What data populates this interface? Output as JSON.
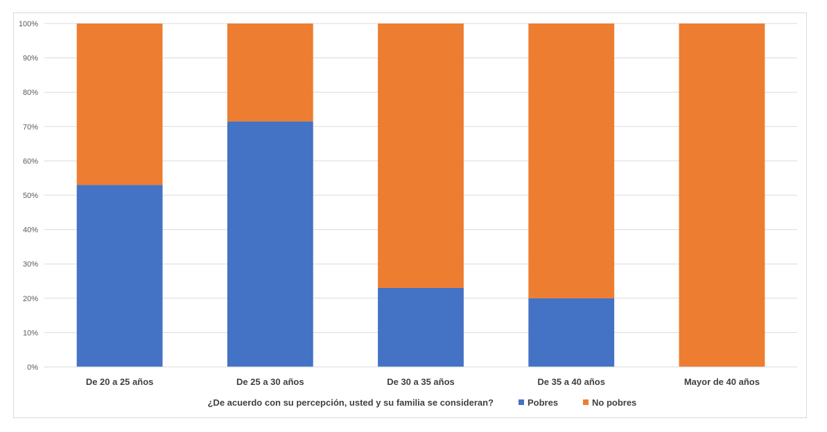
{
  "chart_data": {
    "type": "bar",
    "stacked": "percent",
    "categories": [
      "De 20 a 25 años",
      "De 25 a 30 años",
      "De 30 a 35 años",
      "De 35 a 40 años",
      "Mayor de 40 años"
    ],
    "series": [
      {
        "name": "Pobres",
        "color": "#4472c4",
        "values": [
          53,
          71.5,
          23,
          20,
          0
        ]
      },
      {
        "name": "No pobres",
        "color": "#ed7d31",
        "values": [
          47,
          28.5,
          77,
          80,
          100
        ]
      }
    ],
    "ylim": [
      0,
      100
    ],
    "yticks": [
      "0%",
      "10%",
      "20%",
      "30%",
      "40%",
      "50%",
      "60%",
      "70%",
      "80%",
      "90%",
      "100%"
    ],
    "legend_title": "¿De acuerdo con su percepción, usted y su familia se consideran?",
    "legend_position": "bottom",
    "grid": true
  }
}
